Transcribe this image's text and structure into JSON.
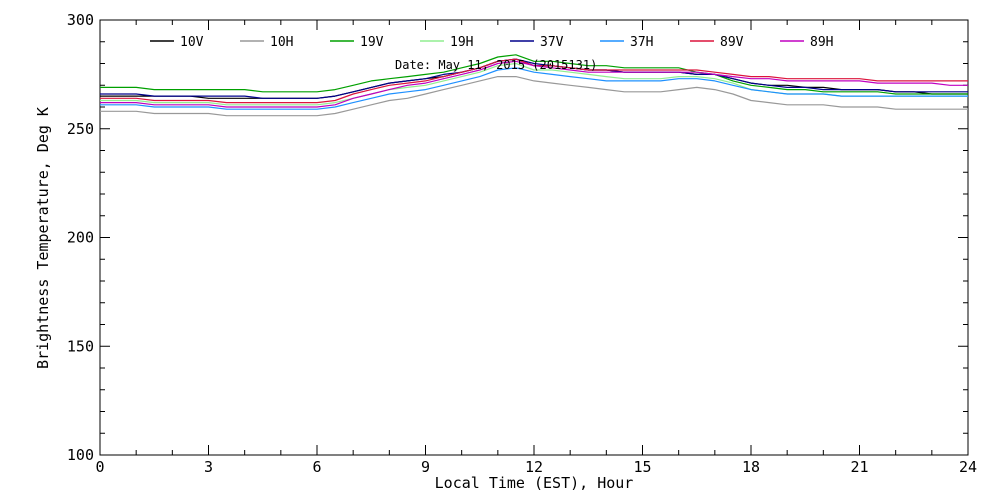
{
  "chart_data": {
    "type": "line",
    "title": "",
    "annotation": "Date: May 11, 2015 (2015131)",
    "xlabel": "Local Time (EST), Hour",
    "ylabel": "Brightness Temperature, Deg K",
    "xlim": [
      0,
      24
    ],
    "ylim": [
      100,
      300
    ],
    "xticks": [
      0,
      3,
      6,
      9,
      12,
      15,
      18,
      21,
      24
    ],
    "xtick_labels": [
      "0",
      "3",
      "6",
      "9",
      "12",
      "15",
      "18",
      "21",
      "24"
    ],
    "yticks": [
      100,
      150,
      200,
      250,
      300
    ],
    "ytick_labels": [
      "100",
      "150",
      "200",
      "250",
      "300"
    ],
    "grid": false,
    "legend_position": "top",
    "x": [
      0,
      0.5,
      1,
      1.5,
      2,
      2.5,
      3,
      3.5,
      4,
      4.5,
      5,
      5.5,
      6,
      6.5,
      7,
      7.5,
      8,
      8.5,
      9,
      9.5,
      10,
      10.5,
      11,
      11.5,
      12,
      12.5,
      13,
      13.5,
      14,
      14.5,
      15,
      15.5,
      16,
      16.5,
      17,
      17.5,
      18,
      18.5,
      19,
      19.5,
      20,
      20.5,
      21,
      21.5,
      22,
      22.5,
      23,
      23.5,
      24
    ],
    "series": [
      {
        "name": "10V",
        "color": "#000000",
        "values": [
          265,
          265,
          265,
          265,
          265,
          265,
          264,
          264,
          264,
          264,
          264,
          264,
          264,
          265,
          267,
          269,
          271,
          272,
          273,
          274,
          276,
          278,
          281,
          282,
          279,
          279,
          278,
          277,
          277,
          276,
          276,
          276,
          276,
          275,
          275,
          273,
          271,
          270,
          270,
          269,
          269,
          268,
          268,
          268,
          267,
          267,
          266,
          266,
          266
        ]
      },
      {
        "name": "10H",
        "color": "#999999",
        "values": [
          258,
          258,
          258,
          257,
          257,
          257,
          257,
          256,
          256,
          256,
          256,
          256,
          256,
          257,
          259,
          261,
          263,
          264,
          266,
          268,
          270,
          272,
          274,
          274,
          272,
          271,
          270,
          269,
          268,
          267,
          267,
          267,
          268,
          269,
          268,
          266,
          263,
          262,
          261,
          261,
          261,
          260,
          260,
          260,
          259,
          259,
          259,
          259,
          259
        ]
      },
      {
        "name": "19V",
        "color": "#00a000",
        "values": [
          269,
          269,
          269,
          268,
          268,
          268,
          268,
          268,
          268,
          267,
          267,
          267,
          267,
          268,
          270,
          272,
          273,
          274,
          275,
          276,
          278,
          280,
          283,
          284,
          281,
          281,
          280,
          279,
          279,
          278,
          278,
          278,
          278,
          276,
          275,
          272,
          270,
          269,
          268,
          268,
          267,
          267,
          267,
          267,
          266,
          266,
          266,
          266,
          266
        ]
      },
      {
        "name": "19H",
        "color": "#90ee90",
        "values": [
          263,
          263,
          263,
          262,
          262,
          262,
          262,
          261,
          261,
          261,
          261,
          261,
          261,
          262,
          264,
          266,
          268,
          269,
          270,
          272,
          274,
          276,
          279,
          280,
          277,
          277,
          276,
          275,
          274,
          273,
          273,
          273,
          274,
          274,
          273,
          271,
          268,
          267,
          266,
          266,
          266,
          265,
          265,
          265,
          265,
          265,
          265,
          265,
          265
        ]
      },
      {
        "name": "37V",
        "color": "#00008b",
        "values": [
          266,
          266,
          266,
          265,
          265,
          265,
          265,
          265,
          265,
          264,
          264,
          264,
          264,
          265,
          267,
          269,
          271,
          272,
          273,
          275,
          276,
          278,
          281,
          282,
          280,
          279,
          278,
          277,
          277,
          276,
          276,
          276,
          276,
          275,
          275,
          273,
          271,
          270,
          269,
          269,
          268,
          268,
          268,
          268,
          267,
          267,
          267,
          267,
          267
        ]
      },
      {
        "name": "37H",
        "color": "#1e90ff",
        "values": [
          261,
          261,
          261,
          260,
          260,
          260,
          260,
          259,
          259,
          259,
          259,
          259,
          259,
          260,
          262,
          264,
          266,
          267,
          268,
          270,
          272,
          274,
          277,
          278,
          276,
          275,
          274,
          273,
          272,
          272,
          272,
          272,
          273,
          273,
          272,
          270,
          268,
          267,
          266,
          266,
          266,
          265,
          265,
          265,
          265,
          265,
          265,
          265,
          265
        ]
      },
      {
        "name": "89V",
        "color": "#dc143c",
        "values": [
          264,
          264,
          264,
          263,
          263,
          263,
          263,
          262,
          262,
          262,
          262,
          262,
          262,
          263,
          266,
          268,
          270,
          271,
          272,
          274,
          276,
          278,
          281,
          282,
          279,
          279,
          278,
          277,
          277,
          277,
          277,
          277,
          277,
          277,
          276,
          275,
          274,
          274,
          273,
          273,
          273,
          273,
          273,
          272,
          272,
          272,
          272,
          272,
          272
        ]
      },
      {
        "name": "89H",
        "color": "#c000c0",
        "values": [
          262,
          262,
          262,
          261,
          261,
          261,
          261,
          260,
          260,
          260,
          260,
          260,
          260,
          261,
          264,
          266,
          268,
          270,
          271,
          273,
          275,
          277,
          280,
          281,
          279,
          278,
          277,
          276,
          276,
          276,
          276,
          276,
          276,
          276,
          275,
          274,
          273,
          273,
          272,
          272,
          272,
          272,
          272,
          271,
          271,
          271,
          271,
          270,
          270
        ]
      }
    ]
  }
}
